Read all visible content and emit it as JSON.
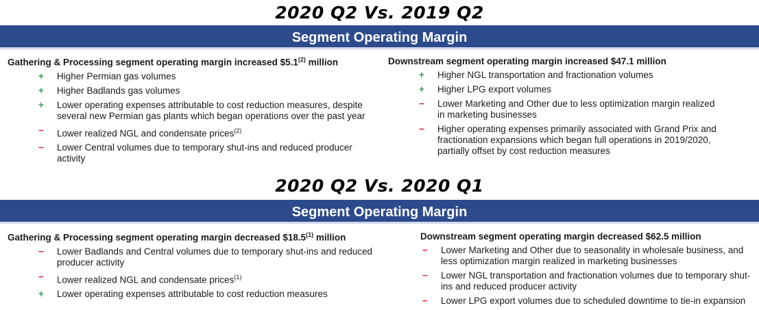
{
  "sections": [
    {
      "title": "2020 Q2 Vs. 2019 Q2",
      "bar": "Segment Operating Margin",
      "left": {
        "heading": "Gathering & Processing segment operating margin increased $5.1",
        "heading_sup": "(2)",
        "heading_suffix": " million",
        "items": [
          {
            "sign": "+",
            "type": "plus",
            "text": "Higher Permian gas volumes",
            "sup": ""
          },
          {
            "sign": "+",
            "type": "plus",
            "text": "Higher Badlands gas volumes",
            "sup": ""
          },
          {
            "sign": "+",
            "type": "plus",
            "text": "Lower operating expenses attributable to cost reduction measures, despite several new Permian gas plants which began operations over the past year",
            "sup": ""
          },
          {
            "sign": "−",
            "type": "minus",
            "text": "Lower realized NGL and condensate prices",
            "sup": "(2)"
          },
          {
            "sign": "−",
            "type": "minus",
            "text": "Lower Central volumes due to temporary shut-ins and reduced producer activity",
            "sup": ""
          }
        ]
      },
      "right": {
        "heading": "Downstream segment operating margin increased $47.1 million",
        "heading_sup": "",
        "heading_suffix": "",
        "items": [
          {
            "sign": "+",
            "type": "plus",
            "text": "Higher NGL transportation and fractionation volumes",
            "sup": ""
          },
          {
            "sign": "+",
            "type": "plus",
            "text": "Higher LPG export volumes",
            "sup": ""
          },
          {
            "sign": "−",
            "type": "minus",
            "text": "Lower Marketing and Other due to less optimization margin realized in marketing businesses",
            "sup": ""
          },
          {
            "sign": "−",
            "type": "minus",
            "text": "Higher operating expenses primarily associated with Grand Prix and fractionation expansions which began full operations in 2019/2020, partially offset by cost reduction measures",
            "sup": ""
          }
        ]
      }
    },
    {
      "title": "2020 Q2 Vs. 2020 Q1",
      "bar": "Segment Operating Margin",
      "left": {
        "heading": "Gathering & Processing segment operating margin decreased $18.5",
        "heading_sup": "(1)",
        "heading_suffix": " million",
        "items": [
          {
            "sign": "−",
            "type": "minus",
            "text": "Lower Badlands and Central volumes due to temporary shut-ins and reduced producer activity",
            "sup": ""
          },
          {
            "sign": "−",
            "type": "minus",
            "text": "Lower realized NGL and condensate prices",
            "sup": "(1)"
          },
          {
            "sign": "+",
            "type": "plus",
            "text": "Lower operating expenses attributable to cost reduction measures",
            "sup": ""
          }
        ]
      },
      "right": {
        "heading": "Downstream segment operating margin decreased $62.5 million",
        "heading_sup": "",
        "heading_suffix": "",
        "items": [
          {
            "sign": "−",
            "type": "minus",
            "text": "Lower Marketing and Other due to seasonality in wholesale business, and less optimization margin realized in marketing businesses",
            "sup": ""
          },
          {
            "sign": "−",
            "type": "minus",
            "text": "Lower NGL transportation and fractionation volumes due to temporary shut-ins and reduced producer activity",
            "sup": ""
          },
          {
            "sign": "−",
            "type": "minus",
            "text": "Lower LPG export volumes due to scheduled downtime to tie-in expansion",
            "sup": ""
          }
        ]
      }
    }
  ]
}
